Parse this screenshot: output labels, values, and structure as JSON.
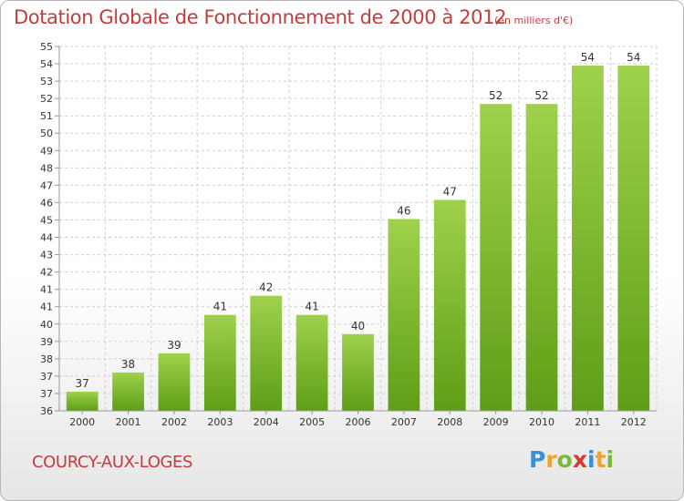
{
  "header": {
    "title": "Dotation Globale de Fonctionnement de 2000 à 2012",
    "units": "(en milliers d'€)"
  },
  "footer": {
    "commune": "COURCY-AUX-LOGES",
    "logo_text": "Proxiti",
    "logo_letters": [
      {
        "ch": "P",
        "color": "#3a8fd6"
      },
      {
        "ch": "r",
        "color": "#f0a22e"
      },
      {
        "ch": "o",
        "color": "#7ab83c"
      },
      {
        "ch": "x",
        "color": "#d6392f"
      },
      {
        "ch": "i",
        "color": "#3a8fd6"
      },
      {
        "ch": "t",
        "color": "#f0a22e"
      },
      {
        "ch": "i",
        "color": "#7ab83c"
      }
    ]
  },
  "colors": {
    "accent": "#c33d3f",
    "bar_top": "#9fd14c",
    "bar_bottom": "#5e9e16",
    "grid": "#cfcfcf",
    "axis_text": "#333333"
  },
  "chart_data": {
    "type": "bar",
    "title": "Dotation Globale de Fonctionnement de 2000 à 2012",
    "categories": [
      "2000",
      "2001",
      "2002",
      "2003",
      "2004",
      "2005",
      "2006",
      "2007",
      "2008",
      "2009",
      "2010",
      "2011",
      "2012"
    ],
    "values": [
      37,
      38,
      39,
      41,
      42,
      41,
      40,
      46,
      47,
      52,
      52,
      54,
      54
    ],
    "ylim": [
      36,
      55
    ],
    "yticks": [
      "36",
      "37",
      "37",
      "38",
      "39",
      "40",
      "41",
      "41",
      "42",
      "43",
      "44",
      "45",
      "46",
      "47",
      "48",
      "49",
      "50",
      "51",
      "52",
      "53",
      "54",
      "55"
    ],
    "xlabel": "",
    "ylabel": "",
    "grid": true,
    "data_labels": true
  }
}
